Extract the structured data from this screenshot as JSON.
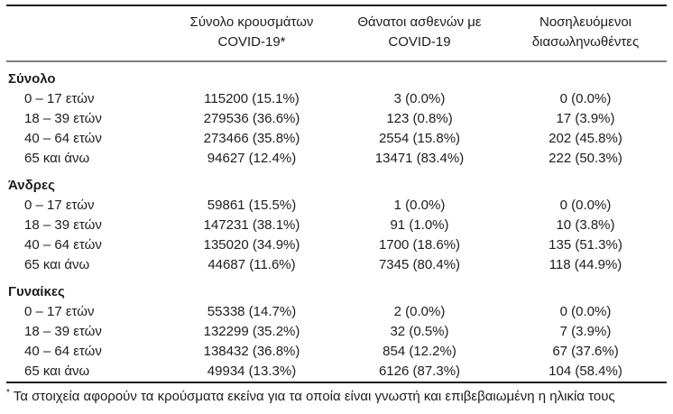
{
  "page": {
    "background": "#ffffff",
    "text_color": "#1d1d1d",
    "rule_dark": "#1e1e1e",
    "rule_gray": "#7e7e7e"
  },
  "table": {
    "header": {
      "col1": "",
      "col2": {
        "line1": "Σύνολο κρουσμάτων",
        "line2": "COVID-19*"
      },
      "col3": {
        "line1": "Θάνατοι ασθενών με",
        "line2": "COVID-19"
      },
      "col4": {
        "line1": "Νοσηλευόμενοι",
        "line2": "διασωληνωθέντες"
      }
    },
    "sections": [
      {
        "label": "Σύνολο",
        "rows": [
          {
            "age": "0 – 17 ετών",
            "cases": "115200 (15.1%)",
            "deaths": "3 (0.0%)",
            "intubated": "0 (0.0%)"
          },
          {
            "age": "18 – 39 ετών",
            "cases": "279536 (36.6%)",
            "deaths": "123 (0.8%)",
            "intubated": "17 (3.9%)"
          },
          {
            "age": "40 – 64 ετών",
            "cases": "273466 (35.8%)",
            "deaths": "2554 (15.8%)",
            "intubated": "202 (45.8%)"
          },
          {
            "age": "65 και άνω",
            "cases": "94627 (12.4%)",
            "deaths": "13471 (83.4%)",
            "intubated": "222 (50.3%)"
          }
        ]
      },
      {
        "label": "Άνδρες",
        "rows": [
          {
            "age": "0 – 17 ετών",
            "cases": "59861 (15.5%)",
            "deaths": "1 (0.0%)",
            "intubated": "0 (0.0%)"
          },
          {
            "age": "18 – 39 ετών",
            "cases": "147231 (38.1%)",
            "deaths": "91 (1.0%)",
            "intubated": "10 (3.8%)"
          },
          {
            "age": "40 – 64 ετών",
            "cases": "135020 (34.9%)",
            "deaths": "1700 (18.6%)",
            "intubated": "135 (51.3%)"
          },
          {
            "age": "65 και άνω",
            "cases": "44687 (11.6%)",
            "deaths": "7345 (80.4%)",
            "intubated": "118 (44.9%)"
          }
        ]
      },
      {
        "label": "Γυναίκες",
        "rows": [
          {
            "age": "0 – 17 ετών",
            "cases": "55338 (14.7%)",
            "deaths": "2 (0.0%)",
            "intubated": "0 (0.0%)"
          },
          {
            "age": "18 – 39 ετών",
            "cases": "132299 (35.2%)",
            "deaths": "32 (0.5%)",
            "intubated": "7 (3.9%)"
          },
          {
            "age": "40 – 64 ετών",
            "cases": "138432 (36.8%)",
            "deaths": "854 (12.2%)",
            "intubated": "67 (37.6%)"
          },
          {
            "age": "65 και άνω",
            "cases": "49934 (13.3%)",
            "deaths": "6126 (87.3%)",
            "intubated": "104 (58.4%)"
          }
        ]
      }
    ]
  },
  "footnote": {
    "marker": "*",
    "text": "Τα στοιχεία αφορούν τα κρούσματα εκείνα για τα οποία είναι γνωστή και επιβεβαιωμένη η ηλικία τους"
  }
}
